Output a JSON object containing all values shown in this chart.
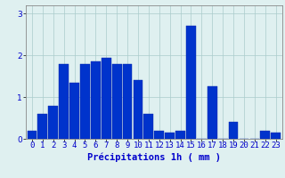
{
  "categories": [
    0,
    1,
    2,
    3,
    4,
    5,
    6,
    7,
    8,
    9,
    10,
    11,
    12,
    13,
    14,
    15,
    16,
    17,
    18,
    19,
    20,
    21,
    22,
    23
  ],
  "values": [
    0.2,
    0.6,
    0.8,
    1.8,
    1.35,
    1.8,
    1.85,
    1.95,
    1.8,
    1.8,
    1.4,
    0.6,
    0.2,
    0.15,
    0.2,
    2.7,
    0.0,
    1.25,
    0.0,
    0.4,
    0.0,
    0.0,
    0.2,
    0.15
  ],
  "bar_color": "#0033cc",
  "bar_edge_color": "#0022aa",
  "background_color": "#dff0f0",
  "grid_color": "#aacccc",
  "text_color": "#0000cc",
  "xlabel": "Précipitations 1h ( mm )",
  "ylim": [
    0,
    3.2
  ],
  "yticks": [
    0,
    1,
    2,
    3
  ],
  "xlabel_fontsize": 7.5,
  "tick_fontsize": 6.5
}
